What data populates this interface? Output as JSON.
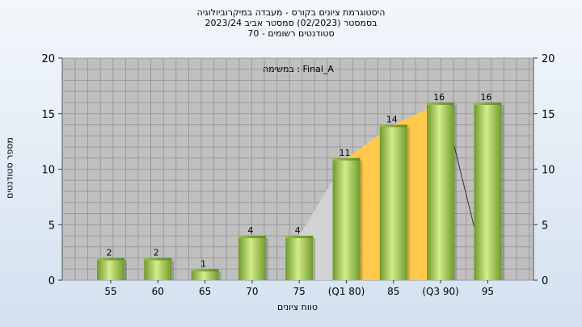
{
  "title_lines": [
    "היסטוגרמת ציונים בקורס - מעבדה במיקרוביולוגיה",
    "בסמסטר  (02/2023)  סמסטר אביב 2023/24",
    "סטודנטים רשומים - 70"
  ],
  "chart_data": {
    "type": "bar",
    "categories": [
      "55",
      "60",
      "65",
      "70",
      "75",
      "(Q1 80)",
      "85",
      "(Q3 90)",
      "95"
    ],
    "values": [
      2,
      2,
      1,
      4,
      4,
      11,
      14,
      16,
      16
    ],
    "annotation": "במשימה : Final_A",
    "xlabel": "טווח ציונים",
    "ylabel": "מספר סטודנטים",
    "ylim": [
      0,
      20
    ],
    "yticks": [
      0,
      5,
      10,
      15,
      20
    ],
    "grid": true,
    "iqr_area": {
      "from_category": "(Q1 80)",
      "to_category": "(Q3 90)",
      "color": "#ffc94d"
    },
    "colors": {
      "plot_bg": "#c0c0c0",
      "bar_light": "#d4ec8e",
      "bar_dark": "#6f9a2a"
    }
  }
}
